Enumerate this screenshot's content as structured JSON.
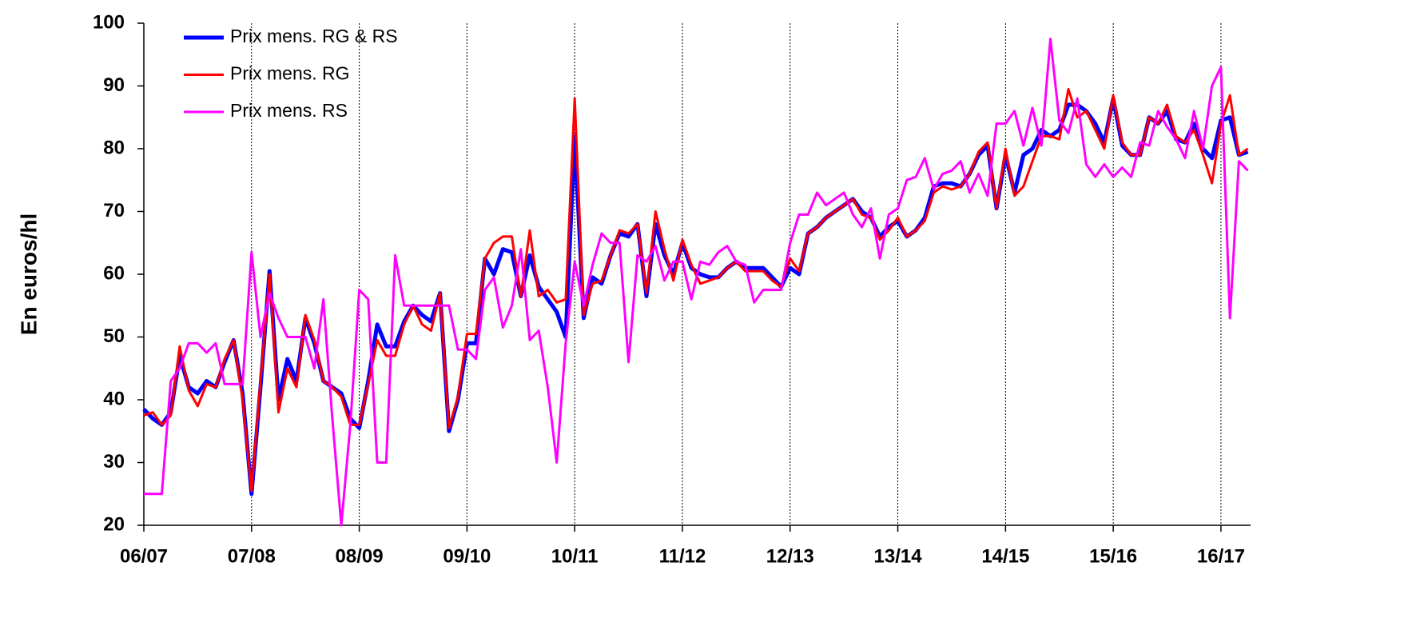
{
  "chart_data": {
    "type": "line",
    "ylabel": "En euros/hl",
    "categories": [
      "06/07",
      null,
      null,
      null,
      null,
      null,
      null,
      null,
      null,
      null,
      null,
      null,
      "07/08",
      null,
      null,
      null,
      null,
      null,
      null,
      null,
      null,
      null,
      null,
      null,
      "08/09",
      null,
      null,
      null,
      null,
      null,
      null,
      null,
      null,
      null,
      null,
      null,
      "09/10",
      null,
      null,
      null,
      null,
      null,
      null,
      null,
      null,
      null,
      null,
      null,
      "10/11",
      null,
      null,
      null,
      null,
      null,
      null,
      null,
      null,
      null,
      null,
      null,
      "11/12",
      null,
      null,
      null,
      null,
      null,
      null,
      null,
      null,
      null,
      null,
      null,
      "12/13",
      null,
      null,
      null,
      null,
      null,
      null,
      null,
      null,
      null,
      null,
      null,
      "13/14",
      null,
      null,
      null,
      null,
      null,
      null,
      null,
      null,
      null,
      null,
      null,
      "14/15",
      null,
      null,
      null,
      null,
      null,
      null,
      null,
      null,
      null,
      null,
      null,
      "15/16",
      null,
      null,
      null,
      null,
      null,
      null,
      null,
      null,
      null,
      null,
      null,
      "16/17",
      null,
      null,
      null
    ],
    "series": [
      {
        "name": "Prix mens. RG & RS",
        "color": "#0000ff",
        "values": [
          38.5,
          37,
          36,
          38,
          47,
          42,
          41,
          43,
          42,
          46,
          49.5,
          41,
          25,
          42,
          60.5,
          40,
          46.5,
          43,
          53,
          49,
          43,
          42,
          41,
          37,
          35.5,
          43,
          52,
          48.5,
          48.5,
          52.5,
          55,
          53.5,
          52.5,
          57,
          35,
          40,
          49,
          49,
          62.5,
          60,
          64,
          63.5,
          56.5,
          63,
          58,
          56,
          54,
          50,
          82,
          53,
          59.5,
          58.5,
          63,
          66.5,
          66,
          68,
          56.5,
          68,
          63,
          60,
          65,
          61,
          60,
          59.5,
          59.5,
          61,
          62,
          61,
          61,
          61,
          59.5,
          58,
          61,
          60,
          66.5,
          67.5,
          69,
          70,
          71,
          72,
          70,
          69,
          66,
          67.5,
          68.5,
          66,
          67,
          69,
          74,
          74.5,
          74.5,
          74,
          76,
          79,
          80.5,
          70.5,
          79,
          73,
          79,
          80,
          83,
          82,
          83,
          87,
          87,
          86,
          84,
          81,
          88,
          80.5,
          79,
          79,
          85,
          84,
          86,
          81.5,
          81,
          84,
          80,
          78.5,
          84.5,
          85,
          79,
          79.5
        ]
      },
      {
        "name": "Prix mens. RG",
        "color": "#ff0000",
        "values": [
          37.5,
          38,
          36,
          37.5,
          48.5,
          41.5,
          39,
          42.5,
          42,
          46.5,
          49.5,
          40,
          25.5,
          43,
          60,
          38,
          45,
          42,
          53.5,
          49.5,
          43,
          42,
          40.5,
          36,
          36,
          42.5,
          49.5,
          47,
          47,
          52,
          55,
          52,
          51,
          57,
          35.5,
          40.5,
          50.5,
          50.5,
          62.5,
          65,
          66,
          66,
          56.5,
          67,
          56.5,
          57.5,
          55.5,
          56,
          88,
          53.5,
          58.5,
          59,
          63,
          67,
          66.5,
          68,
          57,
          70,
          64,
          59,
          65.5,
          61.5,
          58.5,
          59,
          59.5,
          61,
          62,
          60.5,
          60.5,
          60.5,
          59,
          58,
          62.5,
          60.5,
          66.5,
          67.5,
          69,
          70,
          71,
          72,
          69.5,
          69,
          65.5,
          67,
          69,
          66,
          67,
          68.5,
          73,
          74,
          73.5,
          74,
          76,
          79.5,
          81,
          70.5,
          80,
          72.5,
          74,
          78,
          82,
          82,
          81.5,
          89.5,
          85,
          86,
          83,
          80,
          88.5,
          81,
          79,
          79,
          85,
          84,
          87,
          82,
          81,
          83,
          79,
          74.5,
          84,
          88.5,
          79,
          80
        ]
      },
      {
        "name": "Prix mens. RS",
        "color": "#ff00ff",
        "values": [
          25,
          25,
          25,
          43,
          45,
          49,
          49,
          47.5,
          49,
          42.5,
          42.5,
          42.5,
          63.5,
          50,
          57,
          53,
          50,
          50,
          50,
          45,
          56,
          37,
          20,
          36,
          57.5,
          56,
          30,
          30,
          63,
          55,
          55,
          55,
          55,
          55,
          55,
          48,
          48,
          46.5,
          57.5,
          59.5,
          51.5,
          55,
          64,
          49.5,
          51,
          42,
          30,
          49,
          62,
          55,
          61.5,
          66.5,
          65,
          65,
          46,
          63,
          62,
          64.5,
          59,
          62,
          62,
          56,
          62,
          61.5,
          63.5,
          64.5,
          62,
          61.5,
          55.5,
          57.5,
          57.5,
          57.5,
          65,
          69.5,
          69.5,
          73,
          71,
          72,
          73,
          69.5,
          67.5,
          70.5,
          62.5,
          69.5,
          70.5,
          75,
          75.5,
          78.5,
          73.5,
          76,
          76.5,
          78,
          73,
          76,
          72.5,
          84,
          84,
          86,
          80.5,
          86.5,
          80.5,
          97.5,
          84.5,
          82.5,
          88,
          77.5,
          75.5,
          77.5,
          75.5,
          77,
          75.5,
          81,
          80.5,
          86,
          83.5,
          81.5,
          78.5,
          86,
          80,
          90,
          93,
          53,
          78,
          76.5
        ]
      }
    ],
    "ylim": [
      20,
      100
    ],
    "yticks": [
      20,
      30,
      40,
      50,
      60,
      70,
      80,
      90,
      100
    ],
    "legend": "upper left"
  }
}
